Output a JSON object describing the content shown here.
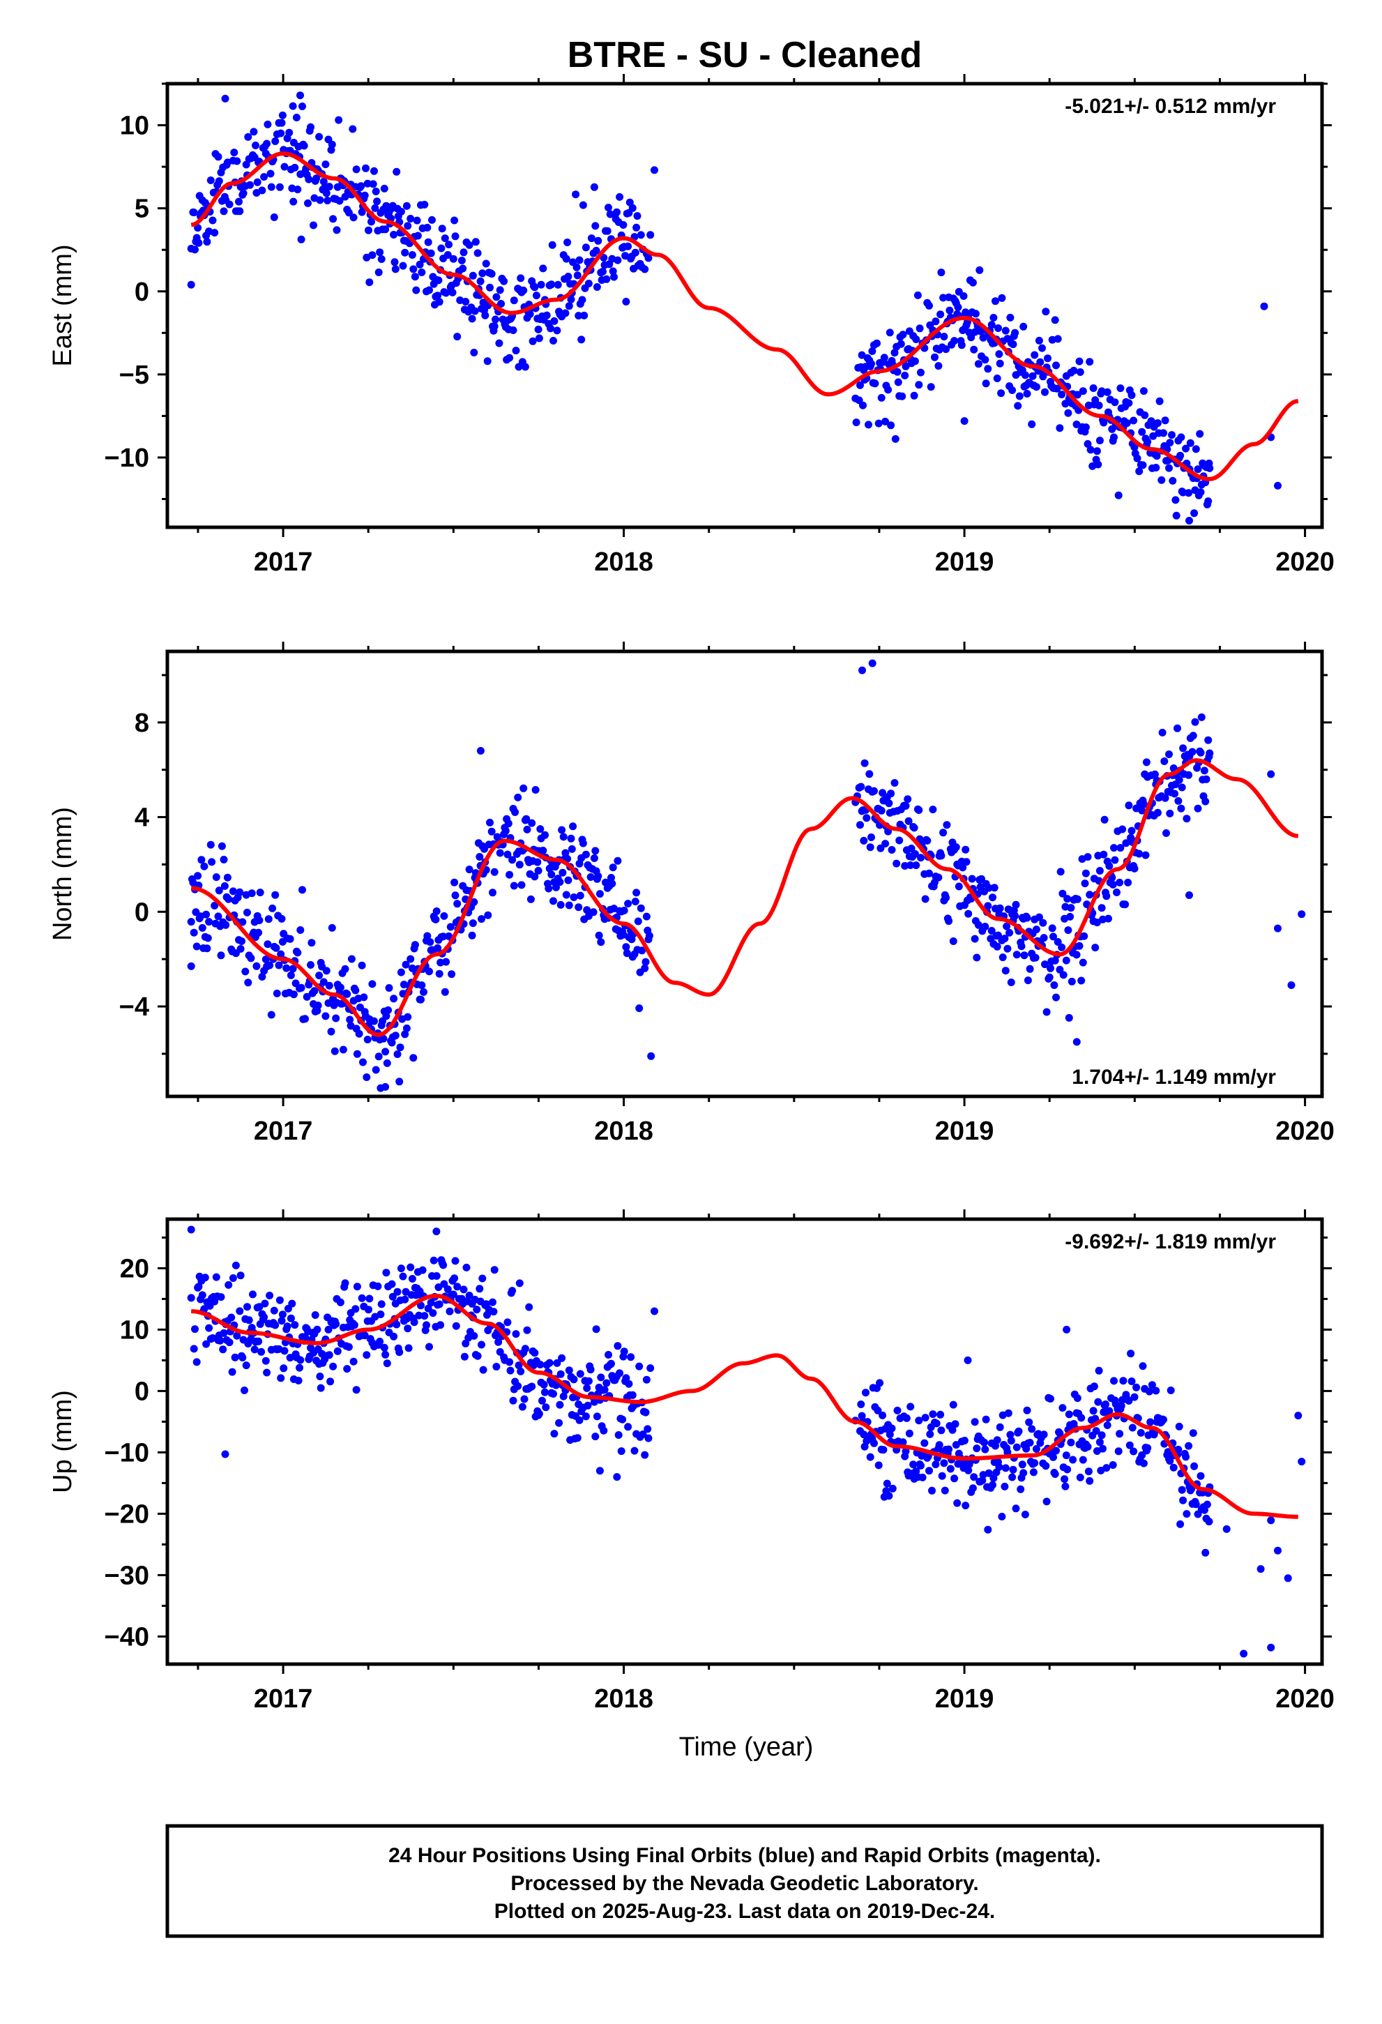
{
  "title": "BTRE  - SU - Cleaned",
  "xlabel": "Time (year)",
  "footer": [
    "24 Hour Positions Using Final Orbits (blue) and Rapid Orbits (magenta).",
    "Processed by the Nevada Geodetic Laboratory.",
    "Plotted on 2025-Aug-23. Last data on 2019-Dec-24."
  ],
  "colors": {
    "points": "#0000ff",
    "fit": "#ff0000",
    "frame": "#000000"
  },
  "chart_data": [
    {
      "type": "scatter",
      "ylabel": "East (mm)",
      "rate": "-5.021+/- 0.512 mm/yr",
      "xlim": [
        2016.66,
        2020.05
      ],
      "ylim": [
        -14.2,
        12.5
      ],
      "xticks": [
        2017,
        2018,
        2019,
        2020
      ],
      "yticks": [
        10,
        5,
        0,
        -5,
        -10
      ],
      "seed": 11,
      "segments": [
        [
          2016.73,
          2018.08
        ],
        [
          2018.68,
          2019.72
        ],
        [
          2019.72,
          2019.99,
          0.18
        ]
      ],
      "fit_x": [
        2016.73,
        2016.85,
        2017.0,
        2017.15,
        2017.3,
        2017.5,
        2017.67,
        2017.8,
        2018.0,
        2018.1,
        2018.25,
        2018.45,
        2018.6,
        2018.75,
        2019.0,
        2019.2,
        2019.4,
        2019.55,
        2019.72,
        2019.85,
        2019.98
      ],
      "fit_y": [
        4.0,
        6.5,
        8.3,
        6.8,
        4.2,
        1.0,
        -1.3,
        -0.5,
        3.2,
        2.2,
        -1.0,
        -3.5,
        -6.2,
        -4.8,
        -1.6,
        -4.5,
        -7.5,
        -9.5,
        -11.3,
        -9.2,
        -6.6
      ],
      "noise": 1.5,
      "outliers": [
        [
          2016.73,
          0.4
        ],
        [
          2017.03,
          5.4
        ],
        [
          2017.6,
          -4.2
        ],
        [
          2018.09,
          7.3
        ],
        [
          2019.0,
          -7.8
        ],
        [
          2019.88,
          -0.9
        ],
        [
          2019.92,
          -11.7
        ],
        [
          2019.66,
          -13.8
        ],
        [
          2016.83,
          11.6
        ],
        [
          2017.05,
          11.8
        ]
      ]
    },
    {
      "type": "scatter",
      "ylabel": "North (mm)",
      "rate": "1.704+/- 1.149 mm/yr",
      "xlim": [
        2016.66,
        2020.05
      ],
      "ylim": [
        -7.8,
        11.0
      ],
      "xticks": [
        2017,
        2018,
        2019,
        2020
      ],
      "yticks": [
        8,
        4,
        0,
        -4
      ],
      "seed": 23,
      "segments": [
        [
          2016.73,
          2018.08
        ],
        [
          2018.68,
          2019.72
        ],
        [
          2019.72,
          2019.99,
          0.18
        ]
      ],
      "fit_x": [
        2016.73,
        2017.0,
        2017.15,
        2017.28,
        2017.45,
        2017.65,
        2017.8,
        2018.0,
        2018.15,
        2018.25,
        2018.4,
        2018.55,
        2018.67,
        2018.8,
        2018.95,
        2019.1,
        2019.28,
        2019.45,
        2019.6,
        2019.68,
        2019.8,
        2019.98
      ],
      "fit_y": [
        1.0,
        -2.0,
        -3.5,
        -5.2,
        -1.8,
        3.0,
        2.2,
        -0.5,
        -3.0,
        -3.5,
        -0.5,
        3.5,
        4.8,
        3.5,
        1.8,
        -0.3,
        -1.8,
        1.8,
        5.8,
        6.4,
        5.6,
        3.2
      ],
      "noise": 1.1,
      "outliers": [
        [
          2016.73,
          -2.3
        ],
        [
          2017.58,
          6.8
        ],
        [
          2018.08,
          -6.1
        ],
        [
          2018.7,
          10.2
        ],
        [
          2018.73,
          10.5
        ],
        [
          2019.66,
          0.7
        ],
        [
          2019.92,
          -0.7
        ],
        [
          2019.96,
          -3.1
        ],
        [
          2019.99,
          -0.1
        ],
        [
          2017.3,
          -7.4
        ],
        [
          2019.33,
          -5.5
        ]
      ]
    },
    {
      "type": "scatter",
      "ylabel": "Up (mm)",
      "rate": "-9.692+/- 1.819 mm/yr",
      "xlim": [
        2016.66,
        2020.05
      ],
      "ylim": [
        -44.5,
        28.0
      ],
      "xticks": [
        2017,
        2018,
        2019,
        2020
      ],
      "yticks": [
        20,
        10,
        0,
        -10,
        -20,
        -30,
        -40
      ],
      "seed": 37,
      "segments": [
        [
          2016.73,
          2018.08
        ],
        [
          2018.68,
          2019.72
        ],
        [
          2019.72,
          2019.99,
          0.18
        ]
      ],
      "fit_x": [
        2016.73,
        2016.9,
        2017.1,
        2017.25,
        2017.45,
        2017.6,
        2017.75,
        2017.9,
        2018.05,
        2018.2,
        2018.35,
        2018.45,
        2018.55,
        2018.68,
        2018.8,
        2019.0,
        2019.2,
        2019.35,
        2019.45,
        2019.55,
        2019.7,
        2019.85,
        2019.98
      ],
      "fit_y": [
        13.0,
        9.5,
        7.8,
        10.0,
        15.5,
        11.0,
        3.0,
        -1.0,
        -1.8,
        0.0,
        4.5,
        5.8,
        2.0,
        -5.0,
        -9.0,
        -11.0,
        -10.5,
        -6.0,
        -3.8,
        -6.0,
        -16.0,
        -20.0,
        -20.5
      ],
      "noise": 4.0,
      "outliers": [
        [
          2016.73,
          26.3
        ],
        [
          2016.83,
          -10.3
        ],
        [
          2017.45,
          26.0
        ],
        [
          2017.93,
          -13.0
        ],
        [
          2017.98,
          -14.0
        ],
        [
          2018.09,
          13.0
        ],
        [
          2019.01,
          5.0
        ],
        [
          2019.3,
          10.0
        ],
        [
          2019.82,
          -42.8
        ],
        [
          2019.87,
          -29.0
        ],
        [
          2019.92,
          -26.0
        ],
        [
          2019.95,
          -30.5
        ],
        [
          2019.99,
          -11.5
        ],
        [
          2019.98,
          -4.0
        ],
        [
          2019.9,
          -41.8
        ],
        [
          2019.77,
          -22.5
        ]
      ]
    }
  ]
}
